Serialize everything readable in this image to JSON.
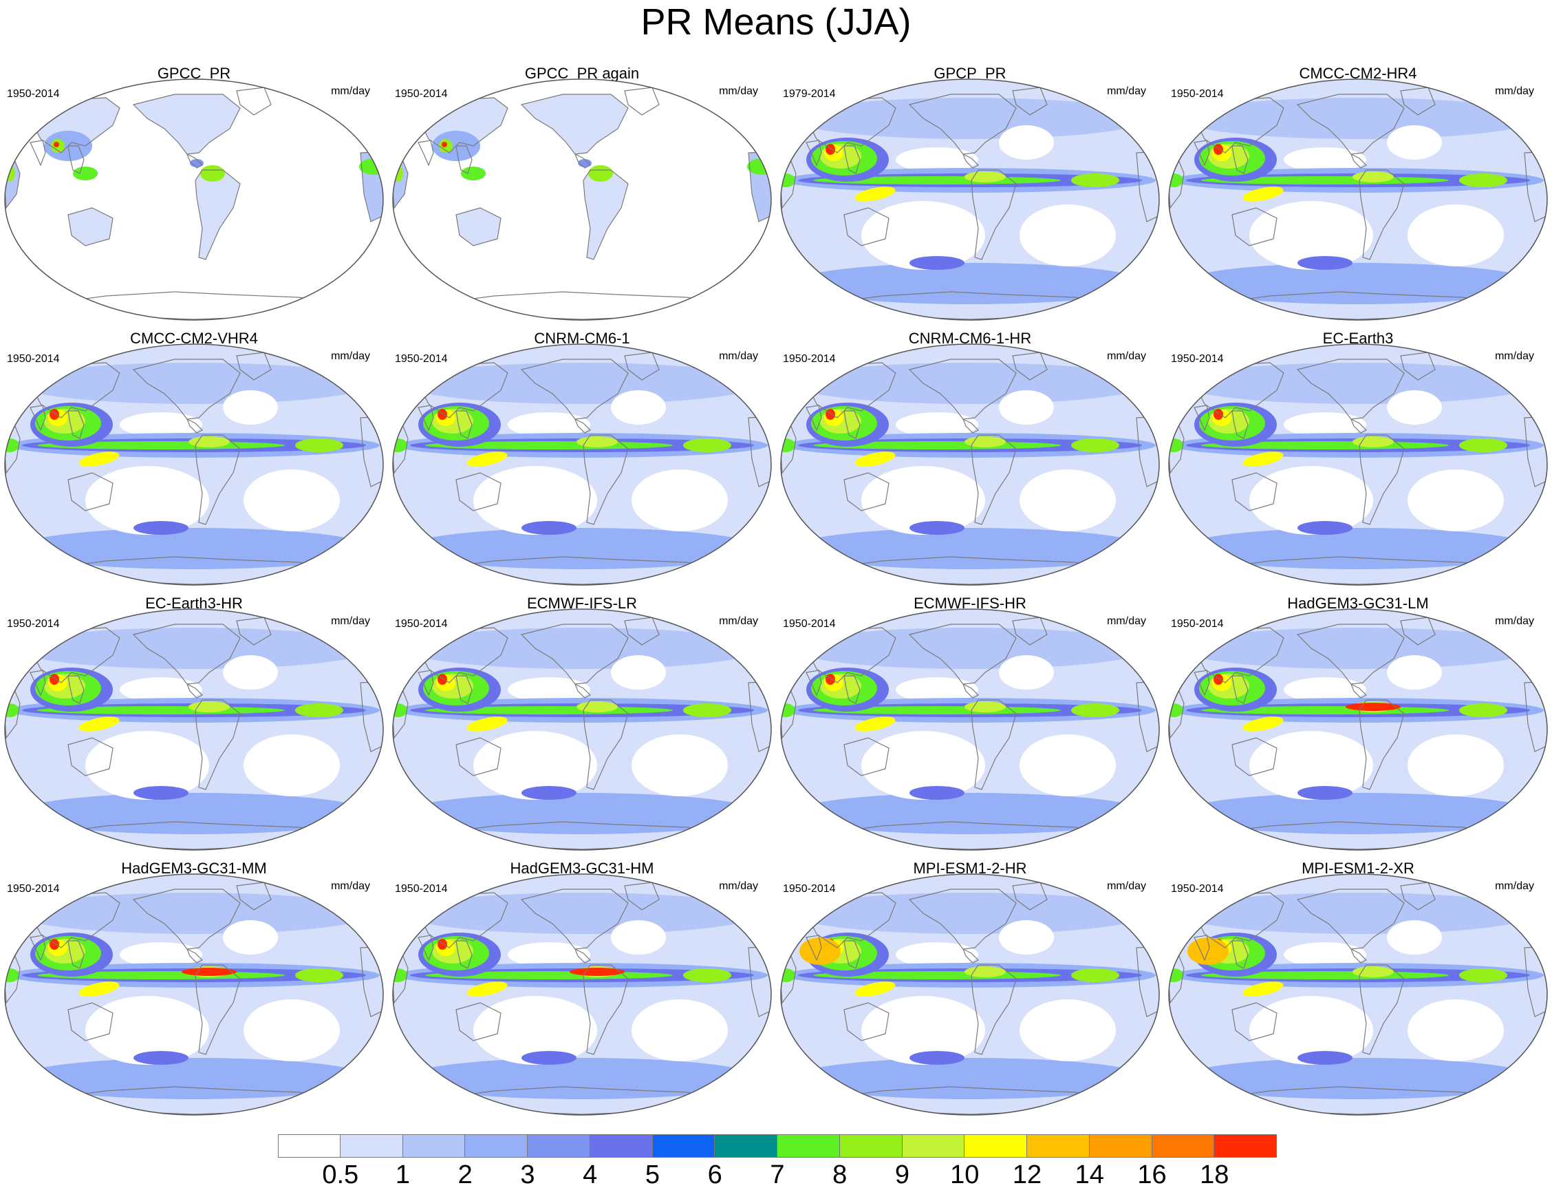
{
  "figure": {
    "title": "PR Means (JJA)"
  },
  "panels": [
    {
      "title": "GPCC_PR",
      "period": "1950-2014",
      "units": "mm/day",
      "fill": "land"
    },
    {
      "title": "GPCC_PR again",
      "period": "1950-2014",
      "units": "mm/day",
      "fill": "land"
    },
    {
      "title": "GPCP_PR",
      "period": "1979-2014",
      "units": "mm/day",
      "fill": "global"
    },
    {
      "title": "CMCC-CM2-HR4",
      "period": "1950-2014",
      "units": "mm/day",
      "fill": "global"
    },
    {
      "title": "CMCC-CM2-VHR4",
      "period": "1950-2014",
      "units": "mm/day",
      "fill": "global"
    },
    {
      "title": "CNRM-CM6-1",
      "period": "1950-2014",
      "units": "mm/day",
      "fill": "global"
    },
    {
      "title": "CNRM-CM6-1-HR",
      "period": "1950-2014",
      "units": "mm/day",
      "fill": "global"
    },
    {
      "title": "EC-Earth3",
      "period": "1950-2014",
      "units": "mm/day",
      "fill": "global"
    },
    {
      "title": "EC-Earth3-HR",
      "period": "1950-2014",
      "units": "mm/day",
      "fill": "global"
    },
    {
      "title": "ECMWF-IFS-LR",
      "period": "1950-2014",
      "units": "mm/day",
      "fill": "global"
    },
    {
      "title": "ECMWF-IFS-HR",
      "period": "1950-2014",
      "units": "mm/day",
      "fill": "global"
    },
    {
      "title": "HadGEM3-GC31-LM",
      "period": "1950-2014",
      "units": "mm/day",
      "fill": "global"
    },
    {
      "title": "HadGEM3-GC31-MM",
      "period": "1950-2014",
      "units": "mm/day",
      "fill": "global"
    },
    {
      "title": "HadGEM3-GC31-HM",
      "period": "1950-2014",
      "units": "mm/day",
      "fill": "global"
    },
    {
      "title": "MPI-ESM1-2-HR",
      "period": "1950-2014",
      "units": "mm/day",
      "fill": "global"
    },
    {
      "title": "MPI-ESM1-2-XR",
      "period": "1950-2014",
      "units": "mm/day",
      "fill": "global"
    }
  ],
  "colorbar": {
    "tick_labels": [
      "0.5",
      "1",
      "2",
      "3",
      "4",
      "5",
      "6",
      "7",
      "8",
      "9",
      "10",
      "12",
      "14",
      "16",
      "18"
    ],
    "colors": [
      "#ffffff",
      "#d6e0fa",
      "#b4c6f8",
      "#95b0f7",
      "#7d94f1",
      "#6a72eb",
      "#0f63f3",
      "#008f8d",
      "#5ef025",
      "#94f018",
      "#c4f236",
      "#ffff00",
      "#ffc000",
      "#ff9f00",
      "#ff7700",
      "#ff2a00"
    ]
  }
}
